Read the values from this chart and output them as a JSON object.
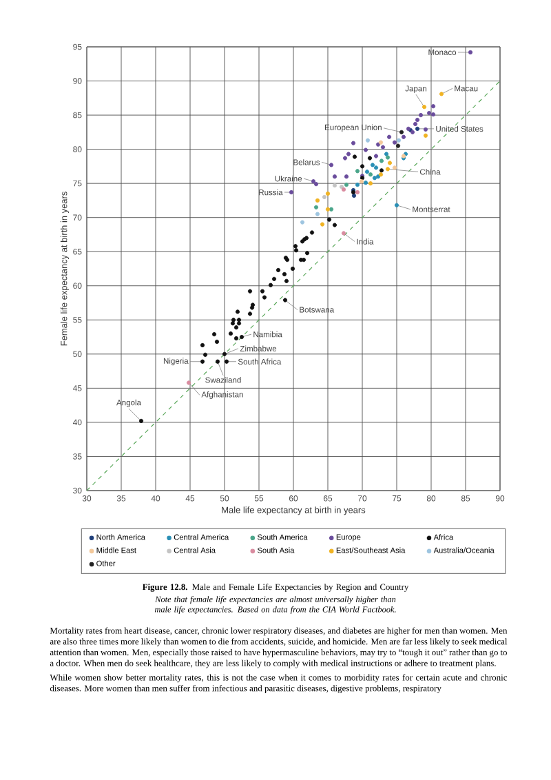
{
  "chart_data": {
    "type": "scatter",
    "title": "**Figure 12.8.** Male and Female Life Expectancies by Region and Country",
    "subtitle": "Note that female life expectancies are almost universally higher than male life expectancies. Based on data from the CIA World Factbook.",
    "xlabel": "Male life expectancy at birth in years",
    "ylabel": "Female life expectancy at birth in years",
    "xlim": [
      30,
      90
    ],
    "ylim": [
      30,
      95
    ],
    "xticks": [
      30,
      35,
      40,
      45,
      50,
      55,
      60,
      65,
      70,
      75,
      80,
      85,
      90
    ],
    "yticks": [
      30,
      35,
      40,
      45,
      50,
      55,
      60,
      65,
      70,
      75,
      80,
      85,
      90,
      95
    ],
    "grid": true,
    "legend": "bottom",
    "marker": "circle",
    "series": [
      {
        "name": "North America",
        "color": "#1f3f7a",
        "x": [
          78,
          68.7,
          68.8,
          77
        ],
        "values": [
          83,
          74,
          73.2,
          82.8
        ]
      },
      {
        "name": "Central America",
        "color": "#2a8fb5",
        "x": [
          75,
          71.5,
          72,
          72.3,
          70.7,
          73.5,
          76.3,
          76,
          71.8,
          70.5,
          69.3
        ],
        "values": [
          71.8,
          77.7,
          77.3,
          76,
          76.7,
          79.3,
          79.3,
          78.7,
          75.8,
          75.1,
          74.8
        ]
      },
      {
        "name": "South America",
        "color": "#4aa58a",
        "x": [
          69.3,
          71.2,
          72.8,
          73.7,
          67.7,
          63.3,
          65.5
        ],
        "values": [
          76.8,
          76.3,
          78.3,
          78.8,
          74.8,
          71.5,
          71.2
        ]
      },
      {
        "name": "Europe",
        "color": "#6a4c9c",
        "x": [
          85.7,
          65.5,
          62.9,
          59.7,
          67.5,
          68,
          68.7,
          70.5,
          72.3,
          73.9,
          74.7,
          76,
          76.7,
          77.7,
          78,
          78.5,
          79.7,
          80.3,
          80.3,
          79.2,
          77.3,
          72,
          73,
          66,
          67.7,
          63.3,
          70
        ],
        "values": [
          94.2,
          77.7,
          75.3,
          73.7,
          78.7,
          79.3,
          80.9,
          79.9,
          80.7,
          81.8,
          81,
          81.8,
          83,
          83.7,
          84.3,
          85,
          85.3,
          86.3,
          85.1,
          82.9,
          82.5,
          79,
          80.3,
          76,
          76,
          74.9,
          76.1
        ]
      },
      {
        "name": "Africa",
        "color": "#111111",
        "x": [
          58.8,
          52.5,
          50,
          46.8,
          50.3,
          49,
          37.9,
          46.8,
          47.2,
          48.5,
          48.9,
          50.9,
          51.2,
          51.3,
          51.7,
          51.9,
          52.1,
          52.1,
          51.7,
          53.7,
          54,
          54.1,
          53.7,
          55.5,
          55.8,
          56.7,
          57.2,
          57.8,
          58.7,
          59,
          59.9,
          58.9,
          59.1,
          60.3,
          60.4,
          61.1,
          61.5,
          62,
          61.3,
          61.6,
          61.9,
          62.7,
          65.2,
          66,
          68.9,
          70,
          71.1,
          72.8,
          70,
          68.7
        ],
        "values": [
          57.9,
          52.5,
          50,
          48.9,
          48.9,
          48.9,
          40.2,
          51.3,
          49.9,
          52.9,
          51.8,
          53,
          54.5,
          55,
          53.9,
          56.2,
          55,
          54.5,
          52.3,
          55.9,
          56.8,
          57.2,
          59.2,
          59.2,
          58.3,
          60.1,
          61,
          62.3,
          61.7,
          60.7,
          62.5,
          64.1,
          63.8,
          65.8,
          65.2,
          63.8,
          63.8,
          64.8,
          66.5,
          66.8,
          67,
          67.8,
          69.7,
          68.9,
          78.9,
          77.5,
          78.7,
          76.9,
          75.8,
          73.7
        ]
      },
      {
        "name": "Middle East",
        "color": "#f3c89a",
        "x": [
          69.9,
          74.7,
          72.7,
          76
        ],
        "values": [
          75.3,
          77.3,
          81,
          79
        ]
      },
      {
        "name": "Central Asia",
        "color": "#c4c4c4",
        "x": [
          66,
          67,
          64.5
        ],
        "values": [
          74.7,
          74.5,
          73
        ]
      },
      {
        "name": "South Asia",
        "color": "#d98ca0",
        "x": [
          67.3,
          44.8,
          69.3,
          67.3
        ],
        "values": [
          67.7,
          45.8,
          73.7,
          74.1
        ]
      },
      {
        "name": "East/Southeast Asia",
        "color": "#f0b323",
        "x": [
          81.5,
          79,
          73.7,
          64.2,
          65,
          65,
          63.5,
          74,
          79.2,
          71.2,
          72.7
        ],
        "values": [
          88.1,
          86.2,
          77.1,
          69,
          71.2,
          73.5,
          72.5,
          78,
          82,
          75,
          76.3
        ]
      },
      {
        "name": "Australia/Oceania",
        "color": "#9ec5e0",
        "x": [
          75.3,
          70.8,
          61.3,
          63.5
        ],
        "values": [
          81.3,
          81.3,
          69.3,
          70.5
        ]
      },
      {
        "name": "Other",
        "color": "#222222",
        "x": [
          75.7,
          75.2
        ],
        "values": [
          82.5,
          80.5
        ]
      },
      {
        "type": "line",
        "color": "#5aa85a",
        "line_style": "dashed",
        "marker": "none",
        "x": [
          30,
          90
        ],
        "values": [
          30,
          90
        ]
      }
    ],
    "annotations": [
      {
        "text": "Monaco",
        "x": 85.7,
        "y": 94.2
      },
      {
        "text": "Macau",
        "x": 81.5,
        "y": 88.1
      },
      {
        "text": "Japan",
        "x": 79,
        "y": 86.2
      },
      {
        "text": "European Union",
        "x": 75.7,
        "y": 82.5
      },
      {
        "text": "United States",
        "x": 78,
        "y": 83
      },
      {
        "text": "Belarus",
        "x": 65.5,
        "y": 77.7
      },
      {
        "text": "Ukraine",
        "x": 62.9,
        "y": 75.3
      },
      {
        "text": "Russia",
        "x": 59.7,
        "y": 73.7
      },
      {
        "text": "China",
        "x": 73.7,
        "y": 77.1
      },
      {
        "text": "Montserrat",
        "x": 75,
        "y": 71.8
      },
      {
        "text": "India",
        "x": 67.3,
        "y": 67.7
      },
      {
        "text": "Botswana",
        "x": 58.8,
        "y": 57.9
      },
      {
        "text": "Namibia",
        "x": 52.5,
        "y": 52.5
      },
      {
        "text": "Zimbabwe",
        "x": 50,
        "y": 50
      },
      {
        "text": "Nigeria",
        "x": 46.8,
        "y": 48.9
      },
      {
        "text": "South Africa",
        "x": 50.3,
        "y": 48.9
      },
      {
        "text": "Swaziland",
        "x": 49,
        "y": 48.9
      },
      {
        "text": "Afghanistan",
        "x": 44.8,
        "y": 45.8
      },
      {
        "text": "Angola",
        "x": 37.9,
        "y": 40.2
      },
      "Mortality rates from heart disease, cancer, chronic lower respiratory diseases, and diabetes are higher for men than women. Men are also three times more likely than women to die from accidents, suicide, and homicide. Men are far less likely to seek medical attention than women. Men, especially those raised to have hypermasculine behaviors, may try to “tough it out” rather than go to a doctor. When men do seek healthcare, they are less likely to comply with medical instructions or adhere to treatment plans.",
      "While women show better mortality rates, this is not the case when it comes to morbidity rates for certain acute and chronic diseases. More women than men suffer from infectious and parasitic diseases, digestive problems, respiratory"
    ]
  }
}
